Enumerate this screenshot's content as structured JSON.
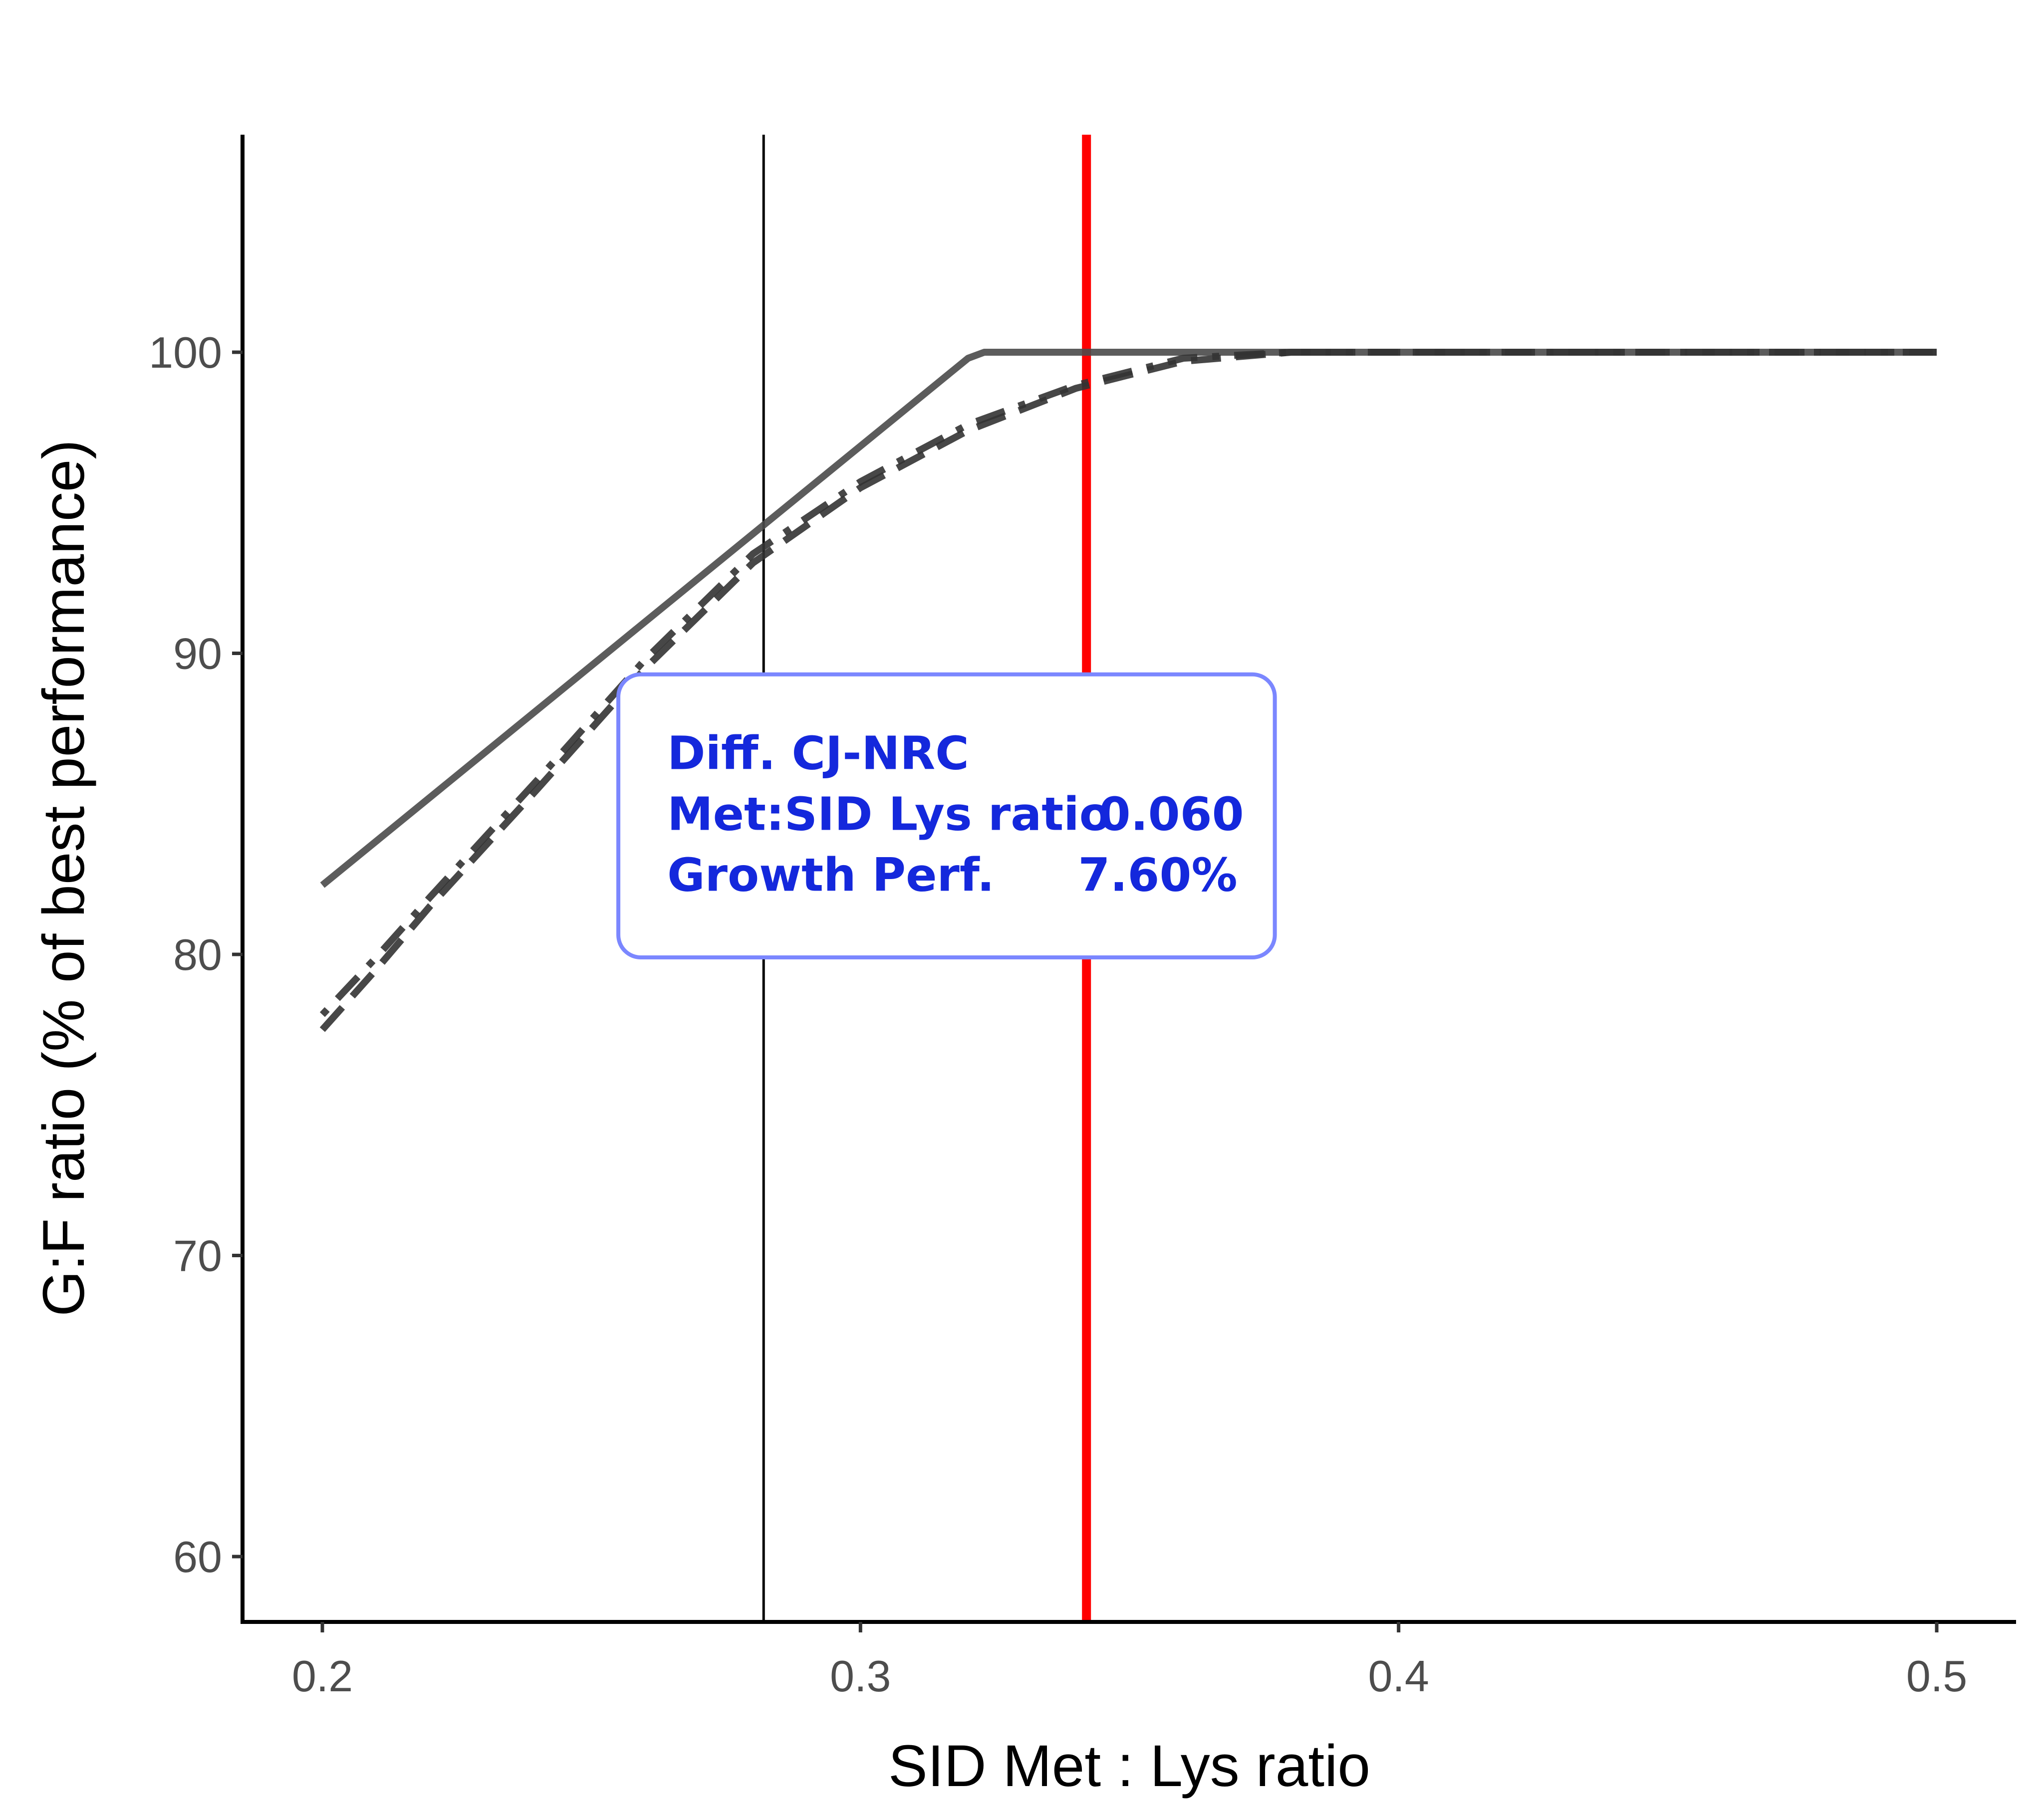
{
  "chart_data": {
    "type": "line",
    "title": "",
    "xlabel": "SID Met : Lys ratio",
    "ylabel": "G:F ratio (% of best performance)",
    "xlim": [
      0.185,
      0.515
    ],
    "ylim": [
      57.8,
      107.2
    ],
    "xticks": [
      0.2,
      0.3,
      0.4,
      0.5
    ],
    "xtick_labels": [
      "0.2",
      "0.3",
      "0.4",
      "0.5"
    ],
    "yticks": [
      60,
      70,
      80,
      90,
      100
    ],
    "ytick_labels": [
      "60",
      "70",
      "80",
      "90",
      "100"
    ],
    "grid": false,
    "series": [
      {
        "name": "solid",
        "style": "solid",
        "color": "#4a4a4a",
        "x": [
          0.2,
          0.32,
          0.323,
          0.5
        ],
        "y": [
          82.3,
          99.8,
          100,
          100
        ]
      },
      {
        "name": "dashed",
        "style": "dashed",
        "color": "#333333",
        "x": [
          0.2,
          0.21,
          0.22,
          0.24,
          0.26,
          0.28,
          0.3,
          0.32,
          0.34,
          0.36,
          0.38,
          0.5
        ],
        "y": [
          77.5,
          79.5,
          81.6,
          85.5,
          89.5,
          93.0,
          95.5,
          97.4,
          98.8,
          99.7,
          100,
          100
        ]
      },
      {
        "name": "dot-dash",
        "style": "dotdash",
        "color": "#333333",
        "x": [
          0.2,
          0.21,
          0.22,
          0.24,
          0.26,
          0.28,
          0.3,
          0.32,
          0.34,
          0.36,
          0.38,
          0.5
        ],
        "y": [
          78.0,
          79.9,
          81.9,
          85.8,
          89.8,
          93.3,
          95.7,
          97.6,
          98.9,
          99.8,
          100,
          100
        ]
      }
    ],
    "vlines": [
      {
        "name": "black-reference",
        "x": 0.282,
        "color": "#000000"
      },
      {
        "name": "red-reference",
        "x": 0.342,
        "color": "#FF0000"
      }
    ],
    "annotation": {
      "title": "Diff. CJ-NRC",
      "row1_label": "Met:SID Lys ratio",
      "row1_value": "0.060",
      "row2_label": "Growth Perf.",
      "row2_value": "7.60%",
      "text_color": "#1428DC",
      "border_color": "#7B87FF",
      "x_range": [
        0.255,
        0.377
      ],
      "y_range": [
        79.9,
        89.3
      ]
    }
  }
}
